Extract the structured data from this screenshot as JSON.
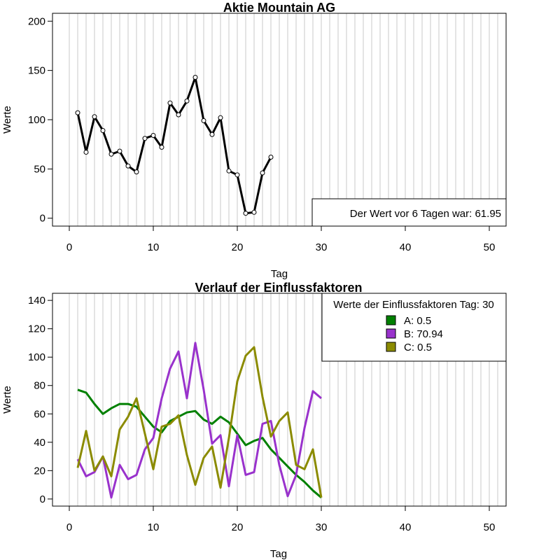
{
  "chart_data": [
    {
      "type": "line",
      "title": "Aktie  Mountain AG",
      "xlabel": "Tag",
      "ylabel": "Werte",
      "xlim": [
        -2,
        52
      ],
      "ylim": [
        -8,
        208
      ],
      "xticks": [
        0,
        10,
        20,
        30,
        40,
        50
      ],
      "yticks": [
        0,
        50,
        100,
        150,
        200
      ],
      "grid": "vertical lines at every day",
      "series": [
        {
          "color": "#000000",
          "markers": true,
          "x": [
            1,
            2,
            3,
            4,
            5,
            6,
            7,
            8,
            9,
            10,
            11,
            12,
            13,
            14,
            15,
            16,
            17,
            18,
            19,
            20,
            21,
            22,
            23,
            24
          ],
          "y": [
            107,
            67,
            103,
            89,
            65,
            68,
            53,
            47,
            81,
            84,
            72,
            117,
            105,
            119,
            143,
            99,
            85,
            102,
            48,
            44,
            5,
            6,
            46,
            62
          ]
        }
      ],
      "annotation": "Der Wert vor 6 Tagen war: 61.95"
    },
    {
      "type": "line",
      "title": "Verlauf der Einflussfaktoren",
      "xlabel": "Tag",
      "ylabel": "Werte",
      "xlim": [
        -2,
        52
      ],
      "ylim": [
        -5,
        145
      ],
      "xticks": [
        0,
        10,
        20,
        30,
        40,
        50
      ],
      "yticks": [
        0,
        20,
        40,
        60,
        80,
        100,
        120,
        140
      ],
      "grid": "vertical lines at every day",
      "legend": {
        "title": "Werte der Einflussfaktoren Tag: 30",
        "placement": "top-right"
      },
      "series": [
        {
          "name": "A: 0.5",
          "color": "#008000",
          "x": [
            1,
            2,
            3,
            4,
            5,
            6,
            7,
            8,
            9,
            10,
            11,
            12,
            13,
            14,
            15,
            16,
            17,
            18,
            19,
            20,
            21,
            22,
            23,
            24,
            25,
            26,
            27,
            28,
            29,
            30
          ],
          "y": [
            77,
            75,
            67,
            60,
            64,
            67,
            67,
            65,
            58,
            51,
            47,
            55,
            58,
            61,
            62,
            56,
            53,
            58,
            54,
            46,
            38,
            41,
            43,
            35,
            29,
            23,
            17,
            12,
            6,
            1
          ]
        },
        {
          "name": "B: 70.94",
          "color": "#9932CC",
          "x": [
            1,
            2,
            3,
            4,
            5,
            6,
            7,
            8,
            9,
            10,
            11,
            12,
            13,
            14,
            15,
            16,
            17,
            18,
            19,
            20,
            21,
            22,
            23,
            24,
            25,
            26,
            27,
            28,
            29,
            30
          ],
          "y": [
            28,
            16,
            19,
            30,
            1,
            24,
            14,
            17,
            35,
            43,
            71,
            92,
            104,
            71,
            110,
            77,
            39,
            45,
            9,
            45,
            17,
            19,
            53,
            55,
            24,
            2,
            17,
            50,
            76,
            71
          ]
        },
        {
          "name": "C: 0.5",
          "color": "#8B8B00",
          "x": [
            1,
            2,
            3,
            4,
            5,
            6,
            7,
            8,
            9,
            10,
            11,
            12,
            13,
            14,
            15,
            16,
            17,
            18,
            19,
            20,
            21,
            22,
            23,
            24,
            25,
            26,
            27,
            28,
            29,
            30
          ],
          "y": [
            22,
            48,
            20,
            30,
            16,
            49,
            58,
            71,
            46,
            21,
            51,
            53,
            59,
            31,
            10,
            29,
            37,
            8,
            43,
            83,
            101,
            107,
            72,
            44,
            55,
            61,
            24,
            21,
            35,
            1
          ]
        }
      ]
    }
  ]
}
